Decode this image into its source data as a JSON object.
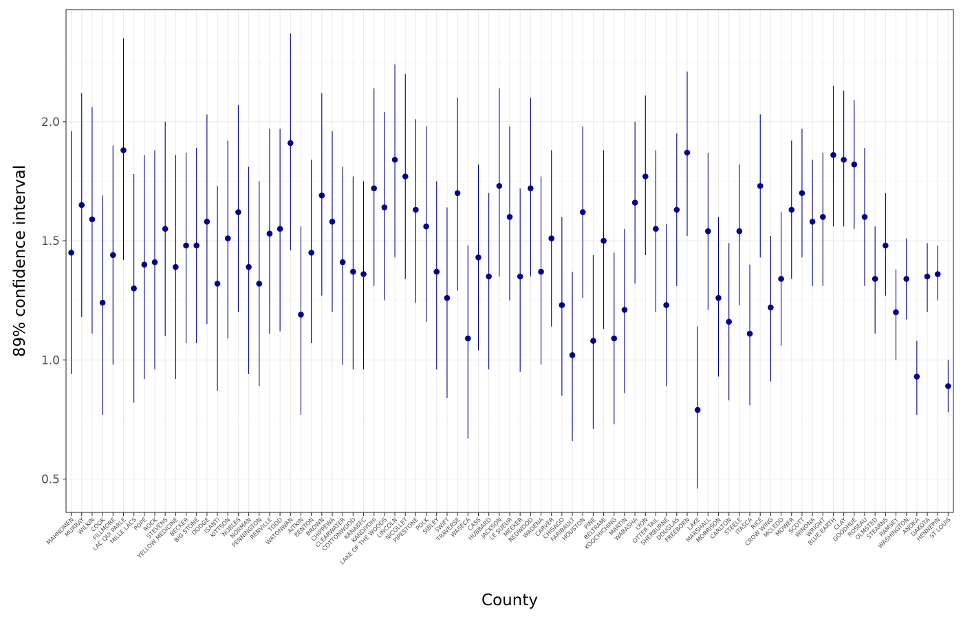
{
  "chart_data": {
    "type": "scatter",
    "title": "",
    "xlabel": "County",
    "ylabel": "89% confidence interval",
    "ylim": [
      0.36,
      2.47
    ],
    "yticks": [
      0.5,
      1.0,
      1.5,
      2.0
    ],
    "ytick_labels": [
      "0.5",
      "1.0",
      "1.5",
      "2.0"
    ],
    "grid": true,
    "legend": "none",
    "colors": {
      "point": "#00008B",
      "interval": "#00008B",
      "grid": "#ebebeb",
      "panel_border": "#333333"
    },
    "counties": [
      {
        "name": "MAHNOMEN",
        "estimate": 1.45,
        "lower": 0.94,
        "upper": 1.96
      },
      {
        "name": "MURRAY",
        "estimate": 1.65,
        "lower": 1.18,
        "upper": 2.12
      },
      {
        "name": "WILKIN",
        "estimate": 1.59,
        "lower": 1.11,
        "upper": 2.06
      },
      {
        "name": "COOK",
        "estimate": 1.24,
        "lower": 0.77,
        "upper": 1.69
      },
      {
        "name": "FILLMORE",
        "estimate": 1.44,
        "lower": 0.98,
        "upper": 1.9
      },
      {
        "name": "LAC QUI PARLE",
        "estimate": 1.88,
        "lower": 1.42,
        "upper": 2.35
      },
      {
        "name": "MILLE LACS",
        "estimate": 1.3,
        "lower": 0.82,
        "upper": 1.78
      },
      {
        "name": "POPE",
        "estimate": 1.4,
        "lower": 0.92,
        "upper": 1.86
      },
      {
        "name": "ROCK",
        "estimate": 1.41,
        "lower": 0.96,
        "upper": 1.88
      },
      {
        "name": "STEVENS",
        "estimate": 1.55,
        "lower": 1.1,
        "upper": 2.0
      },
      {
        "name": "YELLOW MEDICINE",
        "estimate": 1.39,
        "lower": 0.92,
        "upper": 1.86
      },
      {
        "name": "BECKER",
        "estimate": 1.48,
        "lower": 1.07,
        "upper": 1.87
      },
      {
        "name": "BIG STONE",
        "estimate": 1.48,
        "lower": 1.07,
        "upper": 1.89
      },
      {
        "name": "DODGE",
        "estimate": 1.58,
        "lower": 1.15,
        "upper": 2.03
      },
      {
        "name": "ISANTI",
        "estimate": 1.32,
        "lower": 0.87,
        "upper": 1.73
      },
      {
        "name": "KITTSON",
        "estimate": 1.51,
        "lower": 1.09,
        "upper": 1.92
      },
      {
        "name": "NOBLES",
        "estimate": 1.62,
        "lower": 1.2,
        "upper": 2.07
      },
      {
        "name": "NORMAN",
        "estimate": 1.39,
        "lower": 0.94,
        "upper": 1.81
      },
      {
        "name": "PENNINGTON",
        "estimate": 1.32,
        "lower": 0.89,
        "upper": 1.75
      },
      {
        "name": "RENVILLE",
        "estimate": 1.53,
        "lower": 1.11,
        "upper": 1.97
      },
      {
        "name": "TODD",
        "estimate": 1.55,
        "lower": 1.12,
        "upper": 1.97
      },
      {
        "name": "WATONWAN",
        "estimate": 1.91,
        "lower": 1.46,
        "upper": 2.37
      },
      {
        "name": "AITKIN",
        "estimate": 1.19,
        "lower": 0.77,
        "upper": 1.56
      },
      {
        "name": "BENTON",
        "estimate": 1.45,
        "lower": 1.07,
        "upper": 1.84
      },
      {
        "name": "BROWN",
        "estimate": 1.69,
        "lower": 1.27,
        "upper": 2.12
      },
      {
        "name": "CHIPPEWA",
        "estimate": 1.58,
        "lower": 1.2,
        "upper": 1.96
      },
      {
        "name": "CLEARWATER",
        "estimate": 1.41,
        "lower": 0.98,
        "upper": 1.81
      },
      {
        "name": "COTTONWOOD",
        "estimate": 1.37,
        "lower": 0.96,
        "upper": 1.77
      },
      {
        "name": "KANABEC",
        "estimate": 1.36,
        "lower": 0.96,
        "upper": 1.75
      },
      {
        "name": "KANDIYOHI",
        "estimate": 1.72,
        "lower": 1.31,
        "upper": 2.14
      },
      {
        "name": "LAKE OF THE WOODS",
        "estimate": 1.64,
        "lower": 1.25,
        "upper": 2.04
      },
      {
        "name": "LINCOLN",
        "estimate": 1.84,
        "lower": 1.43,
        "upper": 2.24
      },
      {
        "name": "NICOLLET",
        "estimate": 1.77,
        "lower": 1.34,
        "upper": 2.2
      },
      {
        "name": "PIPESTONE",
        "estimate": 1.63,
        "lower": 1.24,
        "upper": 2.01
      },
      {
        "name": "POLK",
        "estimate": 1.56,
        "lower": 1.16,
        "upper": 1.98
      },
      {
        "name": "SIBLEY",
        "estimate": 1.37,
        "lower": 0.96,
        "upper": 1.75
      },
      {
        "name": "SWIFT",
        "estimate": 1.26,
        "lower": 0.84,
        "upper": 1.64
      },
      {
        "name": "TRAVERSE",
        "estimate": 1.7,
        "lower": 1.29,
        "upper": 2.1
      },
      {
        "name": "WASECA",
        "estimate": 1.09,
        "lower": 0.67,
        "upper": 1.48
      },
      {
        "name": "CASS",
        "estimate": 1.43,
        "lower": 1.04,
        "upper": 1.82
      },
      {
        "name": "HUBBARD",
        "estimate": 1.35,
        "lower": 0.96,
        "upper": 1.7
      },
      {
        "name": "JACKSON",
        "estimate": 1.73,
        "lower": 1.35,
        "upper": 2.14
      },
      {
        "name": "LE SUEUR",
        "estimate": 1.6,
        "lower": 1.25,
        "upper": 1.98
      },
      {
        "name": "MEEKER",
        "estimate": 1.35,
        "lower": 0.95,
        "upper": 1.72
      },
      {
        "name": "REDWOOD",
        "estimate": 1.72,
        "lower": 1.35,
        "upper": 2.1
      },
      {
        "name": "WADENA",
        "estimate": 1.37,
        "lower": 0.98,
        "upper": 1.77
      },
      {
        "name": "CARVER",
        "estimate": 1.51,
        "lower": 1.14,
        "upper": 1.88
      },
      {
        "name": "CHISAGO",
        "estimate": 1.23,
        "lower": 0.85,
        "upper": 1.6
      },
      {
        "name": "FARIBAULT",
        "estimate": 1.02,
        "lower": 0.66,
        "upper": 1.37
      },
      {
        "name": "HOUSTON",
        "estimate": 1.62,
        "lower": 1.26,
        "upper": 1.98
      },
      {
        "name": "PINE",
        "estimate": 1.08,
        "lower": 0.71,
        "upper": 1.44
      },
      {
        "name": "BELTRAMI",
        "estimate": 1.5,
        "lower": 1.13,
        "upper": 1.88
      },
      {
        "name": "KOOCHICHING",
        "estimate": 1.09,
        "lower": 0.73,
        "upper": 1.45
      },
      {
        "name": "MARTIN",
        "estimate": 1.21,
        "lower": 0.86,
        "upper": 1.55
      },
      {
        "name": "WABASHA",
        "estimate": 1.66,
        "lower": 1.32,
        "upper": 2.0
      },
      {
        "name": "LYON",
        "estimate": 1.77,
        "lower": 1.44,
        "upper": 2.11
      },
      {
        "name": "OTTER TAIL",
        "estimate": 1.55,
        "lower": 1.2,
        "upper": 1.88
      },
      {
        "name": "SHERBURNE",
        "estimate": 1.23,
        "lower": 0.89,
        "upper": 1.57
      },
      {
        "name": "DOUGLAS",
        "estimate": 1.63,
        "lower": 1.31,
        "upper": 1.95
      },
      {
        "name": "FREEBORN",
        "estimate": 1.87,
        "lower": 1.52,
        "upper": 2.21
      },
      {
        "name": "LAKE",
        "estimate": 0.79,
        "lower": 0.46,
        "upper": 1.14
      },
      {
        "name": "MARSHALL",
        "estimate": 1.54,
        "lower": 1.21,
        "upper": 1.87
      },
      {
        "name": "MORRISON",
        "estimate": 1.26,
        "lower": 0.93,
        "upper": 1.6
      },
      {
        "name": "CARLTON",
        "estimate": 1.16,
        "lower": 0.83,
        "upper": 1.49
      },
      {
        "name": "STEELE",
        "estimate": 1.54,
        "lower": 1.23,
        "upper": 1.82
      },
      {
        "name": "ITASCA",
        "estimate": 1.11,
        "lower": 0.81,
        "upper": 1.4
      },
      {
        "name": "RICE",
        "estimate": 1.73,
        "lower": 1.43,
        "upper": 2.03
      },
      {
        "name": "CROW WING",
        "estimate": 1.22,
        "lower": 0.91,
        "upper": 1.52
      },
      {
        "name": "MCLEOD",
        "estimate": 1.34,
        "lower": 1.06,
        "upper": 1.62
      },
      {
        "name": "MOWER",
        "estimate": 1.63,
        "lower": 1.34,
        "upper": 1.92
      },
      {
        "name": "SCOTT",
        "estimate": 1.7,
        "lower": 1.43,
        "upper": 1.97
      },
      {
        "name": "WINONA",
        "estimate": 1.58,
        "lower": 1.31,
        "upper": 1.84
      },
      {
        "name": "WRIGHT",
        "estimate": 1.6,
        "lower": 1.31,
        "upper": 1.87
      },
      {
        "name": "BLUE EARTH",
        "estimate": 1.86,
        "lower": 1.56,
        "upper": 2.15
      },
      {
        "name": "CLAY",
        "estimate": 1.84,
        "lower": 1.56,
        "upper": 2.13
      },
      {
        "name": "GOODHUE",
        "estimate": 1.82,
        "lower": 1.55,
        "upper": 2.09
      },
      {
        "name": "ROSEAU",
        "estimate": 1.6,
        "lower": 1.31,
        "upper": 1.89
      },
      {
        "name": "OLMSTED",
        "estimate": 1.34,
        "lower": 1.11,
        "upper": 1.56
      },
      {
        "name": "STEARNS",
        "estimate": 1.48,
        "lower": 1.27,
        "upper": 1.7
      },
      {
        "name": "RAMSEY",
        "estimate": 1.2,
        "lower": 1.0,
        "upper": 1.38
      },
      {
        "name": "WASHINGTON",
        "estimate": 1.34,
        "lower": 1.17,
        "upper": 1.51
      },
      {
        "name": "ANOKA",
        "estimate": 0.93,
        "lower": 0.77,
        "upper": 1.08
      },
      {
        "name": "DAKOTA",
        "estimate": 1.35,
        "lower": 1.2,
        "upper": 1.49
      },
      {
        "name": "HENNEPIN",
        "estimate": 1.36,
        "lower": 1.25,
        "upper": 1.48
      },
      {
        "name": "ST LOUIS",
        "estimate": 0.89,
        "lower": 0.78,
        "upper": 1.0
      }
    ]
  }
}
